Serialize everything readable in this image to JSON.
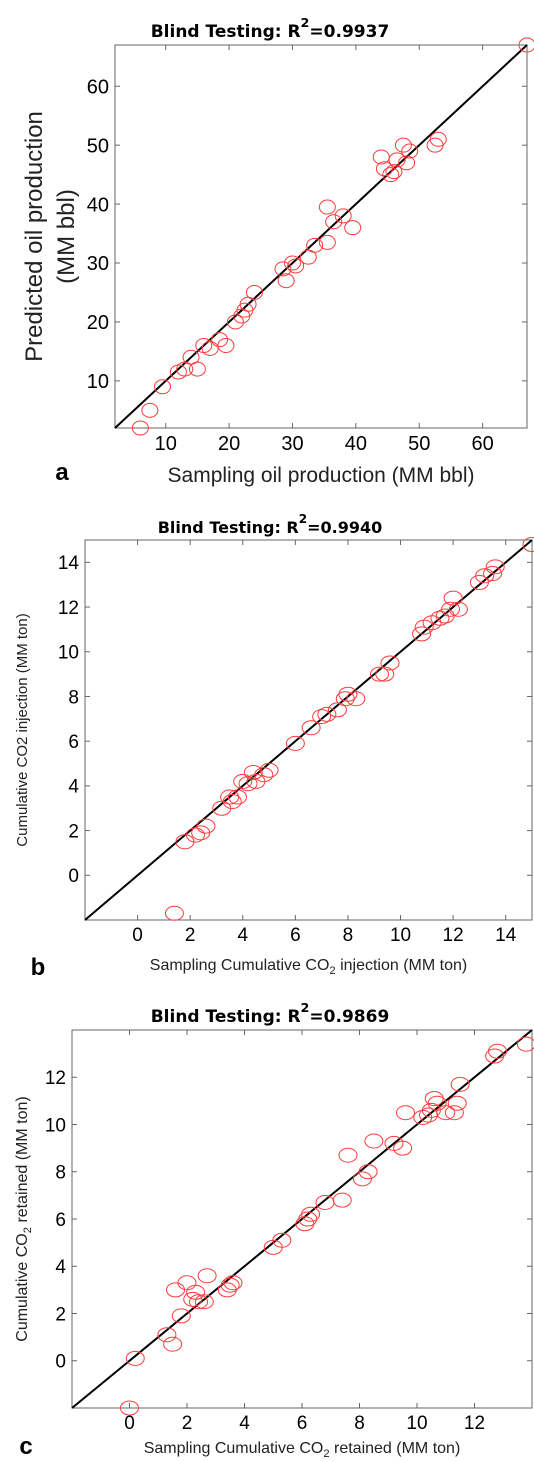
{
  "chart_data": [
    {
      "type": "scatter",
      "panel_letter": "a",
      "title_prefix": "Blind Testing: R",
      "title_sup": "2",
      "title_value": "=0.9937",
      "xlabel": "Sampling oil production (MM bbl)",
      "ylabel_line1": "Predicted oil production",
      "ylabel_line2": "(MM bbl)",
      "xlim": [
        2,
        67
      ],
      "ylim": [
        2,
        67
      ],
      "xticks": [
        10,
        20,
        30,
        40,
        50,
        60
      ],
      "yticks": [
        10,
        20,
        30,
        40,
        50,
        60
      ],
      "fit_line": [
        [
          2,
          2
        ],
        [
          67,
          67
        ]
      ],
      "marker_color": "#ff3b3b",
      "line_color": "#000000",
      "points": [
        [
          6,
          2
        ],
        [
          7.5,
          5
        ],
        [
          9.5,
          9
        ],
        [
          12,
          11.5
        ],
        [
          13,
          12
        ],
        [
          14,
          14
        ],
        [
          15,
          12
        ],
        [
          16,
          16
        ],
        [
          17,
          15.5
        ],
        [
          18.5,
          17
        ],
        [
          19.5,
          16
        ],
        [
          21,
          20
        ],
        [
          22,
          21
        ],
        [
          22.5,
          22
        ],
        [
          23,
          23
        ],
        [
          24,
          25
        ],
        [
          28.5,
          29
        ],
        [
          29,
          27
        ],
        [
          30,
          30
        ],
        [
          30.5,
          29.5
        ],
        [
          32.5,
          31
        ],
        [
          33.5,
          33
        ],
        [
          35.5,
          33.5
        ],
        [
          35.5,
          39.5
        ],
        [
          36.5,
          37
        ],
        [
          38,
          38
        ],
        [
          39.5,
          36
        ],
        [
          44,
          48
        ],
        [
          44.5,
          46
        ],
        [
          45.5,
          45
        ],
        [
          46.5,
          47.5
        ],
        [
          46,
          45.5
        ],
        [
          47.5,
          50
        ],
        [
          48,
          47
        ],
        [
          48.5,
          49
        ],
        [
          52.5,
          50
        ],
        [
          53,
          51
        ],
        [
          67,
          67
        ]
      ]
    },
    {
      "type": "scatter",
      "panel_letter": "b",
      "title_prefix": "Blind Testing: R",
      "title_sup": "2",
      "title_value": "=0.9940",
      "xlabel_pre": "Sampling Cumulative CO",
      "xlabel_sub": "2",
      "xlabel_post": " injection (MM ton)",
      "ylabel": "Cumulative CO2 injection (MM ton)",
      "xlim": [
        -2,
        15
      ],
      "ylim": [
        -2,
        15
      ],
      "xticks": [
        0,
        2,
        4,
        6,
        8,
        10,
        12,
        14
      ],
      "yticks": [
        0,
        2,
        4,
        6,
        8,
        10,
        12,
        14
      ],
      "fit_line": [
        [
          -2,
          -2
        ],
        [
          15,
          15
        ]
      ],
      "marker_color": "#ff3b3b",
      "line_color": "#000000",
      "points": [
        [
          1.4,
          -1.7
        ],
        [
          1.8,
          1.5
        ],
        [
          2.2,
          1.8
        ],
        [
          2.4,
          1.9
        ],
        [
          2.6,
          2.2
        ],
        [
          3.2,
          3
        ],
        [
          3.5,
          3.5
        ],
        [
          3.6,
          3.3
        ],
        [
          3.8,
          3.5
        ],
        [
          4,
          4.2
        ],
        [
          4.2,
          4.1
        ],
        [
          4.4,
          4.6
        ],
        [
          4.5,
          4.2
        ],
        [
          4.8,
          4.5
        ],
        [
          5,
          4.7
        ],
        [
          6,
          5.9
        ],
        [
          6.6,
          6.6
        ],
        [
          7,
          7.1
        ],
        [
          7.2,
          7.2
        ],
        [
          7.6,
          7.4
        ],
        [
          7.9,
          7.9
        ],
        [
          8,
          8.1
        ],
        [
          8.3,
          7.9
        ],
        [
          9.2,
          9
        ],
        [
          9.4,
          9
        ],
        [
          9.6,
          9.5
        ],
        [
          10.8,
          10.8
        ],
        [
          10.9,
          11.1
        ],
        [
          11.2,
          11.3
        ],
        [
          11.5,
          11.5
        ],
        [
          11.7,
          11.6
        ],
        [
          11.9,
          11.9
        ],
        [
          12,
          12.4
        ],
        [
          12.2,
          11.9
        ],
        [
          13,
          13.1
        ],
        [
          13.2,
          13.4
        ],
        [
          13.5,
          13.5
        ],
        [
          13.6,
          13.8
        ],
        [
          15,
          14.8
        ]
      ]
    },
    {
      "type": "scatter",
      "panel_letter": "c",
      "title_prefix": "Blind Testing: R",
      "title_sup": "2",
      "title_value": "=0.9869",
      "xlabel_pre": "Sampling Cumulative CO",
      "xlabel_sub": "2",
      "xlabel_post": " retained (MM ton)",
      "ylabel_pre": "Cumulative CO",
      "ylabel_sub": "2",
      "ylabel_post": " retained (MM ton)",
      "xlim": [
        -2,
        14
      ],
      "ylim": [
        -2,
        14
      ],
      "xticks": [
        0,
        2,
        4,
        6,
        8,
        10,
        12
      ],
      "yticks": [
        0,
        2,
        4,
        6,
        8,
        10,
        12
      ],
      "fit_line": [
        [
          -2,
          -2
        ],
        [
          14,
          14
        ]
      ],
      "marker_color": "#ff3b3b",
      "line_color": "#000000",
      "points": [
        [
          0,
          -2
        ],
        [
          0.2,
          0.1
        ],
        [
          1.3,
          1.1
        ],
        [
          1.5,
          0.7
        ],
        [
          1.6,
          3
        ],
        [
          1.8,
          1.9
        ],
        [
          2,
          3.3
        ],
        [
          2.2,
          2.6
        ],
        [
          2.3,
          2.9
        ],
        [
          2.4,
          2.5
        ],
        [
          2.6,
          2.5
        ],
        [
          2.7,
          3.6
        ],
        [
          3.4,
          3
        ],
        [
          3.5,
          3.2
        ],
        [
          3.6,
          3.3
        ],
        [
          5,
          4.8
        ],
        [
          5.3,
          5.1
        ],
        [
          6.1,
          5.8
        ],
        [
          6.2,
          6
        ],
        [
          6.3,
          6.2
        ],
        [
          6.8,
          6.7
        ],
        [
          7.4,
          6.8
        ],
        [
          7.6,
          8.7
        ],
        [
          8.1,
          7.7
        ],
        [
          8.3,
          8
        ],
        [
          8.5,
          9.3
        ],
        [
          9.2,
          9.2
        ],
        [
          9.5,
          9
        ],
        [
          9.6,
          10.5
        ],
        [
          10.2,
          10.3
        ],
        [
          10.4,
          10.4
        ],
        [
          10.5,
          10.6
        ],
        [
          10.6,
          11.1
        ],
        [
          10.7,
          10.9
        ],
        [
          11,
          10.5
        ],
        [
          11.3,
          10.5
        ],
        [
          11.4,
          10.9
        ],
        [
          11.5,
          11.7
        ],
        [
          12.7,
          12.9
        ],
        [
          12.8,
          13.1
        ],
        [
          13.8,
          13.4
        ]
      ]
    }
  ]
}
